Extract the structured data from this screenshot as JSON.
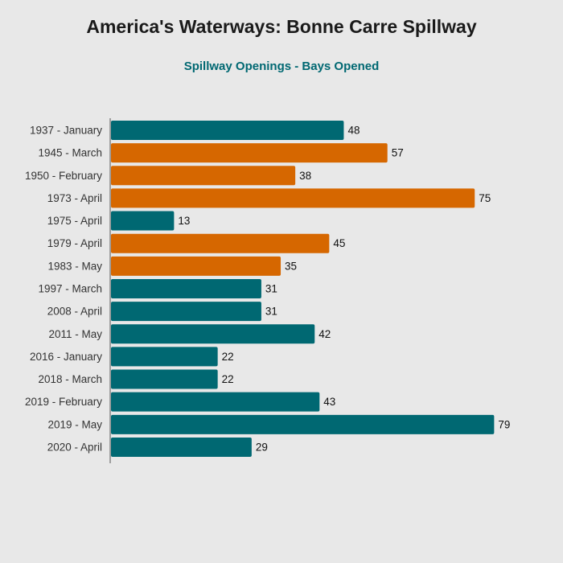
{
  "chart_data": {
    "type": "bar",
    "orientation": "horizontal",
    "title": "America's Waterways: Bonne Carre Spillway",
    "subtitle": "Spillway Openings - Bays Opened",
    "xlabel": "",
    "ylabel": "",
    "xlim": [
      0,
      79
    ],
    "grid": false,
    "legend": "none",
    "categories": [
      "1937 - January",
      "1945 - March",
      "1950 - February",
      "1973 - April",
      "1975 - April",
      "1979 - April",
      "1983 - May",
      "1997 - March",
      "2008 - April",
      "2011 - May",
      "2016 - January",
      "2018 - March",
      "2019 - February",
      "2019 - May",
      "2020 - April"
    ],
    "values": [
      48,
      57,
      38,
      75,
      13,
      45,
      35,
      31,
      31,
      42,
      22,
      22,
      43,
      79,
      29
    ],
    "bar_colors": [
      "#006872",
      "#d66700",
      "#d66700",
      "#d66700",
      "#006872",
      "#d66700",
      "#d66700",
      "#006872",
      "#006872",
      "#006872",
      "#006872",
      "#006872",
      "#006872",
      "#006872",
      "#006872"
    ],
    "colors": {
      "teal": "#006872",
      "orange": "#d66700",
      "subtitle": "#006872",
      "axis": "#555555",
      "label": "#333333",
      "value_label": "#111111"
    }
  }
}
